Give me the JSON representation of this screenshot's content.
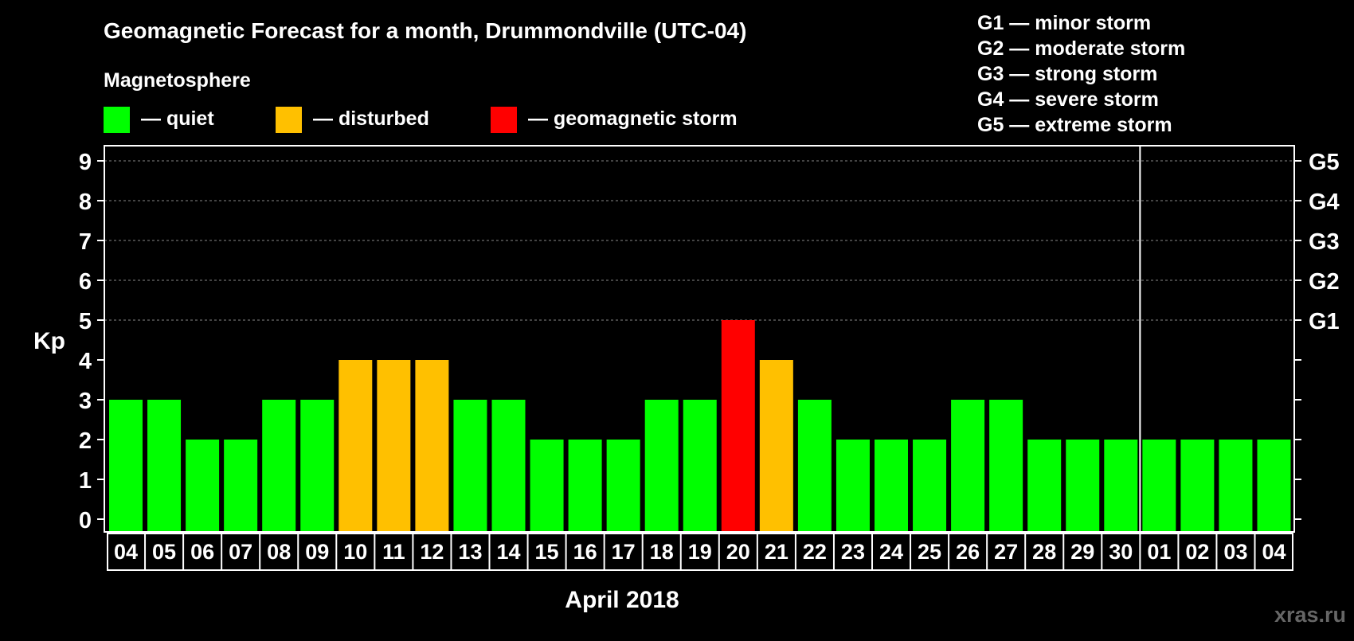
{
  "chart_data": {
    "type": "bar",
    "title": "Geomagnetic Forecast for a month, Drummondville (UTC-04)",
    "subtitle": "Magnetosphere",
    "ylabel": "Kp",
    "xlabel": "April 2018",
    "ylim": [
      0,
      9
    ],
    "yticks": [
      "0",
      "1",
      "2",
      "3",
      "4",
      "5",
      "6",
      "7",
      "8",
      "9"
    ],
    "storm_axis_labels": [
      {
        "kp": 5,
        "label": "G1"
      },
      {
        "kp": 6,
        "label": "G2"
      },
      {
        "kp": 7,
        "label": "G3"
      },
      {
        "kp": 8,
        "label": "G4"
      },
      {
        "kp": 9,
        "label": "G5"
      }
    ],
    "legend": [
      {
        "label": "— quiet",
        "color": "#00ff00"
      },
      {
        "label": "— disturbed",
        "color": "#ffc000"
      },
      {
        "label": "— geomagnetic storm",
        "color": "#ff0000"
      }
    ],
    "storm_scale": [
      "G1 — minor storm",
      "G2 — moderate storm",
      "G3 — strong storm",
      "G4 — severe storm",
      "G5 — extreme storm"
    ],
    "categories": [
      "04",
      "05",
      "06",
      "07",
      "08",
      "09",
      "10",
      "11",
      "12",
      "13",
      "14",
      "15",
      "16",
      "17",
      "18",
      "19",
      "20",
      "21",
      "22",
      "23",
      "24",
      "25",
      "26",
      "27",
      "28",
      "29",
      "30",
      "01",
      "02",
      "03",
      "04"
    ],
    "values": [
      3,
      3,
      2,
      2,
      3,
      3,
      4,
      4,
      4,
      3,
      3,
      2,
      2,
      2,
      3,
      3,
      5,
      4,
      3,
      2,
      2,
      2,
      3,
      3,
      2,
      2,
      2,
      2,
      2,
      2,
      2
    ],
    "month_divider_after_index": 26,
    "colors": {
      "quiet": "#00ff00",
      "disturbed": "#ffc000",
      "storm": "#ff0000"
    }
  },
  "watermark": "xras.ru"
}
